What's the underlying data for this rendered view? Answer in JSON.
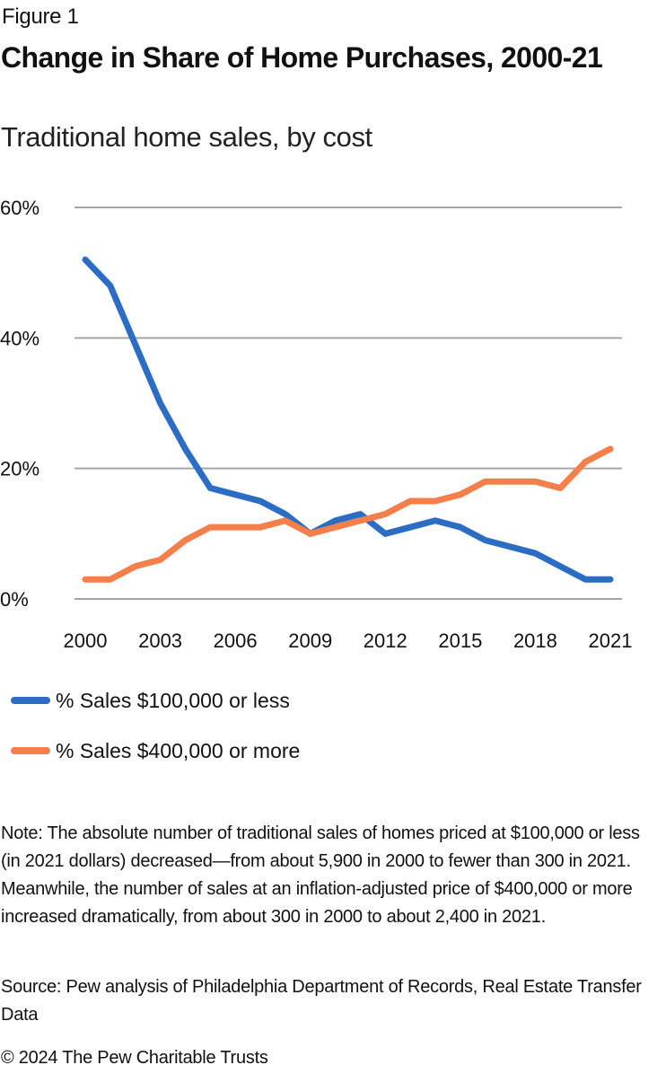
{
  "header": {
    "figure_label": "Figure 1",
    "title": "Change in Share of Home Purchases, 2000-21",
    "subtitle": "Traditional home sales, by cost"
  },
  "chart_data": {
    "type": "line",
    "title": "Change in Share of Home Purchases, 2000-21",
    "subtitle": "Traditional home sales, by cost",
    "xlabel": "",
    "ylabel": "",
    "x": [
      2000,
      2001,
      2002,
      2003,
      2004,
      2005,
      2006,
      2007,
      2008,
      2009,
      2010,
      2011,
      2012,
      2013,
      2014,
      2015,
      2016,
      2017,
      2018,
      2019,
      2020,
      2021
    ],
    "x_tick_labels": [
      "2000",
      "2003",
      "2006",
      "2009",
      "2012",
      "2015",
      "2018",
      "2021"
    ],
    "y_tick_labels": [
      "0%",
      "20%",
      "40%",
      "60%"
    ],
    "y_ticks": [
      0,
      20,
      40,
      60
    ],
    "ylim": [
      0,
      60
    ],
    "xlim": [
      2000,
      2021
    ],
    "grid": "horizontal",
    "legend_position": "bottom-left",
    "series": [
      {
        "name": "% Sales $100,000 or less",
        "color": "#2b6cc4",
        "values": [
          52,
          48,
          39,
          30,
          23,
          17,
          16,
          15,
          13,
          10,
          12,
          13,
          10,
          11,
          12,
          11,
          9,
          8,
          7,
          5,
          3,
          3
        ]
      },
      {
        "name": "% Sales $400,000 or more",
        "color": "#f47f4a",
        "values": [
          3,
          3,
          5,
          6,
          9,
          11,
          11,
          11,
          12,
          10,
          11,
          12,
          13,
          15,
          15,
          16,
          18,
          18,
          18,
          17,
          21,
          23
        ]
      }
    ]
  },
  "footer": {
    "note": "Note: The absolute number of traditional sales of homes priced at $100,000 or less (in 2021 dollars) decreased—from about 5,900 in 2000 to fewer than 300 in 2021. Meanwhile, the number of sales at an inflation-adjusted price of $400,000 or more increased dramatically, from about 300 in 2000 to about 2,400 in 2021.",
    "source": "Source: Pew analysis of Philadelphia Department of Records, Real Estate Transfer Data",
    "copyright": "© 2024 The Pew Charitable Trusts"
  },
  "colors": {
    "gridline": "#a6a6a6",
    "text": "#111111"
  }
}
